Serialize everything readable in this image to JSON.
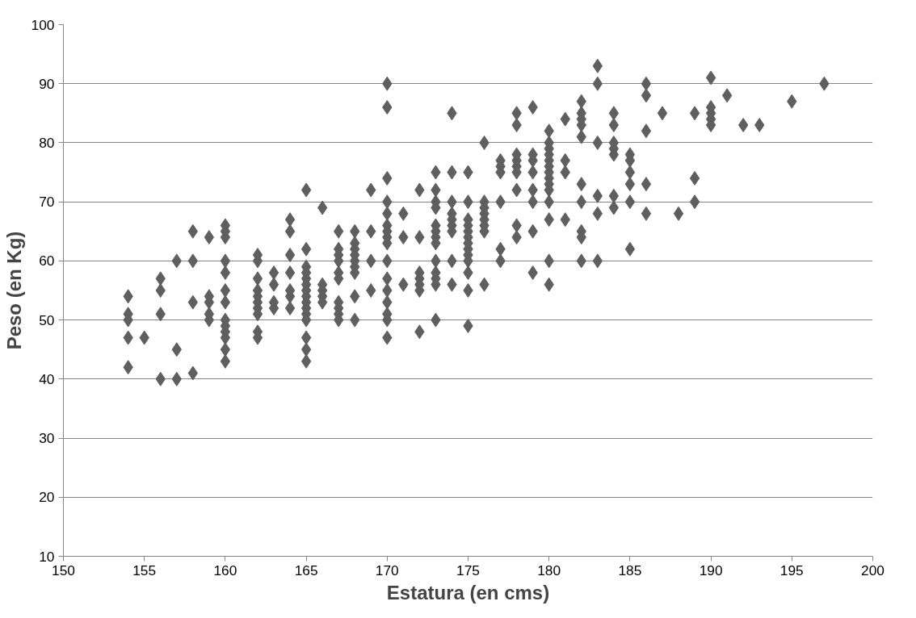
{
  "chart_data": {
    "type": "scatter",
    "xlabel": "Estatura (en cms)",
    "ylabel": "Peso (en Kg)",
    "xlim": [
      150,
      200
    ],
    "ylim": [
      10,
      100
    ],
    "xticks": [
      150,
      155,
      160,
      165,
      170,
      175,
      180,
      185,
      190,
      195,
      200
    ],
    "yticks": [
      10,
      20,
      30,
      40,
      50,
      60,
      70,
      80,
      90,
      100
    ],
    "grid": "y",
    "marker": "diamond",
    "series": [
      {
        "color": "#5f5f5f",
        "x": [
          154,
          154,
          154,
          154,
          154,
          155,
          156,
          156,
          156,
          156,
          157,
          157,
          157,
          158,
          158,
          158,
          158,
          159,
          159,
          159,
          159,
          159,
          160,
          160,
          160,
          160,
          160,
          160,
          160,
          160,
          160,
          160,
          160,
          160,
          160,
          162,
          162,
          162,
          162,
          162,
          162,
          162,
          162,
          162,
          162,
          163,
          163,
          163,
          163,
          164,
          164,
          164,
          164,
          164,
          164,
          164,
          165,
          165,
          165,
          165,
          165,
          165,
          165,
          165,
          165,
          165,
          165,
          165,
          165,
          165,
          165,
          166,
          166,
          166,
          166,
          166,
          167,
          167,
          167,
          167,
          167,
          167,
          167,
          167,
          167,
          167,
          168,
          168,
          168,
          168,
          168,
          168,
          168,
          168,
          168,
          169,
          169,
          169,
          169,
          170,
          170,
          170,
          170,
          170,
          170,
          170,
          170,
          170,
          170,
          170,
          170,
          170,
          170,
          170,
          170,
          171,
          171,
          171,
          172,
          172,
          172,
          172,
          172,
          172,
          172,
          173,
          173,
          173,
          173,
          173,
          173,
          173,
          173,
          173,
          173,
          173,
          173,
          173,
          174,
          174,
          174,
          174,
          174,
          174,
          174,
          174,
          174,
          175,
          175,
          175,
          175,
          175,
          175,
          175,
          175,
          175,
          175,
          175,
          175,
          175,
          176,
          176,
          176,
          176,
          176,
          176,
          176,
          176,
          177,
          177,
          177,
          177,
          177,
          177,
          178,
          178,
          178,
          178,
          178,
          178,
          178,
          178,
          178,
          179,
          179,
          179,
          179,
          179,
          179,
          179,
          179,
          180,
          180,
          180,
          180,
          180,
          180,
          180,
          180,
          180,
          180,
          180,
          180,
          180,
          180,
          181,
          181,
          181,
          181,
          182,
          182,
          182,
          182,
          182,
          182,
          182,
          182,
          182,
          182,
          183,
          183,
          183,
          183,
          183,
          183,
          184,
          184,
          184,
          184,
          184,
          184,
          184,
          185,
          185,
          185,
          185,
          185,
          185,
          186,
          186,
          186,
          186,
          186,
          187,
          188,
          189,
          189,
          189,
          190,
          190,
          190,
          190,
          190,
          191,
          192,
          193,
          195,
          197
        ],
        "values": [
          54,
          51,
          50,
          47,
          42,
          47,
          57,
          55,
          51,
          40,
          60,
          45,
          40,
          65,
          60,
          53,
          41,
          64,
          54,
          53,
          51,
          50,
          66,
          65,
          64,
          60,
          58,
          55,
          53,
          50,
          49,
          48,
          47,
          45,
          43,
          61,
          60,
          57,
          55,
          54,
          53,
          52,
          51,
          48,
          47,
          58,
          56,
          53,
          52,
          67,
          65,
          61,
          58,
          55,
          54,
          52,
          72,
          62,
          59,
          58,
          57,
          56,
          55,
          54,
          53,
          52,
          51,
          50,
          47,
          45,
          43,
          69,
          56,
          55,
          54,
          53,
          65,
          62,
          61,
          60,
          58,
          57,
          53,
          52,
          51,
          50,
          65,
          63,
          62,
          61,
          60,
          59,
          58,
          54,
          50,
          72,
          65,
          60,
          55,
          90,
          86,
          74,
          70,
          68,
          66,
          65,
          64,
          63,
          60,
          57,
          55,
          53,
          51,
          50,
          47,
          68,
          64,
          56,
          72,
          64,
          58,
          57,
          56,
          55,
          48,
          75,
          72,
          70,
          69,
          66,
          65,
          64,
          63,
          60,
          58,
          57,
          56,
          50,
          85,
          75,
          70,
          68,
          67,
          66,
          65,
          60,
          56,
          75,
          70,
          67,
          66,
          65,
          64,
          63,
          62,
          61,
          60,
          58,
          55,
          49,
          80,
          70,
          69,
          68,
          67,
          66,
          65,
          56,
          77,
          76,
          75,
          70,
          62,
          60,
          85,
          83,
          78,
          77,
          76,
          75,
          72,
          66,
          64,
          86,
          78,
          77,
          75,
          72,
          70,
          65,
          58,
          82,
          80,
          79,
          78,
          77,
          76,
          75,
          74,
          73,
          72,
          70,
          67,
          60,
          56,
          84,
          77,
          75,
          67,
          87,
          85,
          84,
          83,
          81,
          73,
          70,
          65,
          64,
          60,
          93,
          90,
          80,
          71,
          68,
          60,
          85,
          83,
          80,
          79,
          78,
          71,
          69,
          78,
          77,
          75,
          73,
          70,
          62,
          90,
          88,
          82,
          73,
          68,
          85,
          68,
          85,
          74,
          70,
          91,
          86,
          85,
          84,
          83,
          88,
          83,
          83,
          87,
          90
        ]
      }
    ]
  }
}
